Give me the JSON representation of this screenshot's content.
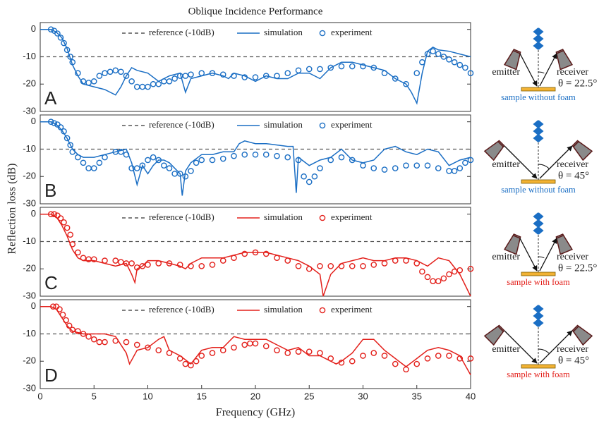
{
  "chart_data": [
    {
      "type": "line",
      "title": "Oblique Incidence Performance",
      "ylabel": "Reflection loss (dB)",
      "label": "A",
      "xlim": [
        0,
        40
      ],
      "ylim": [
        -30,
        2.5
      ],
      "yticks": [
        -30,
        -20,
        -10,
        0
      ],
      "series": [
        {
          "name": "reference (-10dB)",
          "color": "#555555",
          "style": "dashed",
          "x": [
            0,
            40
          ],
          "values": [
            -10,
            -10
          ]
        },
        {
          "name": "simulation",
          "color": "#1a6ec4",
          "style": "line",
          "x": [
            0,
            1,
            1.5,
            2,
            2.5,
            3,
            3.5,
            4,
            5,
            6,
            7,
            7.5,
            8,
            8.5,
            9,
            10,
            11,
            12,
            13,
            13.5,
            14,
            15,
            16,
            17,
            17.5,
            18,
            19,
            20,
            21,
            22,
            23,
            24,
            25,
            26,
            27,
            28,
            29,
            30,
            31,
            32,
            33,
            34,
            34.5,
            35,
            35.5,
            36,
            36.5,
            37,
            38,
            39,
            40
          ],
          "values": [
            0,
            0,
            -1,
            -3,
            -7,
            -13,
            -17,
            -20,
            -21,
            -22,
            -24,
            -21,
            -17,
            -14,
            -15,
            -16,
            -19,
            -17,
            -16,
            -23,
            -18,
            -17,
            -16,
            -17,
            -18,
            -16,
            -17,
            -19,
            -17,
            -18,
            -18,
            -16,
            -16,
            -18,
            -14,
            -12,
            -12,
            -13,
            -14,
            -15,
            -18,
            -20,
            -23,
            -27,
            -16,
            -8,
            -6.5,
            -7.5,
            -8,
            -9,
            -10
          ]
        },
        {
          "name": "experiment",
          "color": "#1a6ec4",
          "style": "markers",
          "x": [
            1,
            1.3,
            1.6,
            1.9,
            2.2,
            2.5,
            2.8,
            3,
            3.5,
            4,
            4.5,
            5,
            5.5,
            6,
            6.5,
            7,
            7.5,
            8,
            8.5,
            9,
            9.5,
            10,
            10.5,
            11,
            11.5,
            12,
            12.5,
            13,
            13.5,
            14,
            15,
            16,
            17,
            18,
            19,
            20,
            21,
            22,
            23,
            24,
            25,
            26,
            27,
            28,
            29,
            30,
            31,
            32,
            33,
            34,
            35,
            35.5,
            36,
            36.5,
            37,
            37.5,
            38,
            38.5,
            39,
            39.5,
            40
          ],
          "values": [
            0,
            -0.5,
            -1.5,
            -3,
            -5,
            -7.5,
            -10,
            -12,
            -16,
            -19,
            -19.5,
            -19,
            -17,
            -16,
            -15.5,
            -15,
            -15.5,
            -17,
            -19,
            -21,
            -21,
            -21,
            -20,
            -20,
            -19,
            -19,
            -18,
            -17,
            -17,
            -16.5,
            -16,
            -16,
            -16.5,
            -17,
            -17.5,
            -17.5,
            -17,
            -17,
            -16,
            -15,
            -14.5,
            -14.5,
            -14,
            -13.5,
            -13.5,
            -13.5,
            -14,
            -16,
            -18,
            -20,
            -16,
            -12,
            -9,
            -8,
            -9,
            -10,
            -11,
            -12,
            -13,
            -14,
            -16
          ]
        }
      ]
    },
    {
      "type": "line",
      "label": "B",
      "xlim": [
        0,
        40
      ],
      "ylim": [
        -30,
        2.5
      ],
      "yticks": [
        -30,
        -20,
        -10,
        0
      ],
      "series": [
        {
          "name": "reference (-10dB)",
          "color": "#555555",
          "style": "dashed",
          "x": [
            0,
            40
          ],
          "values": [
            -10,
            -10
          ]
        },
        {
          "name": "simulation",
          "color": "#1a6ec4",
          "style": "line",
          "x": [
            0,
            1,
            1.5,
            2,
            2.5,
            3,
            3.5,
            4,
            5,
            6,
            7,
            8,
            8.5,
            9,
            9.5,
            10,
            10.5,
            11,
            11.5,
            12,
            13,
            13.2,
            13.5,
            14,
            15,
            16,
            17,
            18,
            18.5,
            19,
            20,
            21,
            22,
            23,
            23.5,
            23.8,
            24,
            25,
            26,
            27,
            28,
            29,
            30,
            31,
            32,
            33,
            34,
            35,
            36,
            37,
            38,
            39,
            40
          ],
          "values": [
            0,
            0,
            -1,
            -3,
            -6,
            -10,
            -12,
            -13,
            -13,
            -12,
            -11,
            -10,
            -15,
            -23,
            -16,
            -19,
            -16,
            -14,
            -14,
            -15,
            -19,
            -27,
            -18,
            -15,
            -12,
            -12,
            -11,
            -11,
            -8,
            -7,
            -8,
            -8,
            -8.5,
            -9,
            -9,
            -26,
            -13,
            -16,
            -14,
            -13,
            -10,
            -14,
            -15,
            -14,
            -10,
            -9,
            -11,
            -12,
            -10,
            -11,
            -16,
            -14,
            -13
          ]
        },
        {
          "name": "experiment",
          "color": "#1a6ec4",
          "style": "markers",
          "x": [
            1,
            1.3,
            1.6,
            1.9,
            2.2,
            2.5,
            2.8,
            3,
            3.5,
            4,
            4.5,
            5,
            5.5,
            6,
            7,
            7.5,
            8,
            8.5,
            9,
            9.5,
            10,
            10.5,
            11,
            11.5,
            12,
            12.5,
            13,
            13.5,
            14,
            14.5,
            15,
            16,
            17,
            18,
            19,
            20,
            21,
            22,
            23,
            24,
            24.5,
            25,
            25.5,
            26,
            27,
            28,
            29,
            30,
            31,
            32,
            33,
            34,
            35,
            36,
            37,
            38,
            38.5,
            39,
            39.5,
            40
          ],
          "values": [
            0,
            -0.5,
            -1,
            -2,
            -3.5,
            -6,
            -8.5,
            -11,
            -13,
            -15,
            -17,
            -17,
            -15,
            -13,
            -11,
            -11,
            -12,
            -17,
            -17,
            -16,
            -14,
            -13,
            -14,
            -16,
            -17,
            -19,
            -19,
            -20,
            -18,
            -15,
            -14,
            -14,
            -13.5,
            -12.5,
            -12,
            -12,
            -12,
            -12.5,
            -13,
            -14,
            -20,
            -22,
            -20,
            -17,
            -14,
            -13,
            -14,
            -16,
            -17,
            -17.5,
            -17,
            -16,
            -16,
            -16,
            -17,
            -18,
            -18,
            -17,
            -15,
            -14
          ]
        }
      ]
    },
    {
      "type": "line",
      "label": "C",
      "xlim": [
        0,
        40
      ],
      "ylim": [
        -30,
        2.5
      ],
      "yticks": [
        -30,
        -20,
        -10,
        0
      ],
      "series": [
        {
          "name": "reference (-10dB)",
          "color": "#555555",
          "style": "dashed",
          "x": [
            0,
            40
          ],
          "values": [
            -10,
            -10
          ]
        },
        {
          "name": "simulation",
          "color": "#e3201b",
          "style": "line",
          "x": [
            0,
            1,
            1.5,
            2,
            2.5,
            3,
            3.5,
            4,
            5,
            6,
            7,
            8,
            8.5,
            8.8,
            9,
            9.5,
            10,
            11,
            12,
            13,
            13.5,
            14,
            15,
            16,
            17,
            18,
            19,
            20,
            21,
            22,
            23,
            24,
            25,
            26,
            26.3,
            27,
            27.5,
            28,
            29,
            30,
            31,
            32,
            33,
            34,
            35,
            36,
            37,
            38,
            39,
            39.5,
            40
          ],
          "values": [
            0,
            0,
            -1,
            -4,
            -8,
            -13,
            -16,
            -17,
            -17,
            -18,
            -19,
            -18,
            -22,
            -25,
            -20,
            -19,
            -17,
            -17,
            -18,
            -19,
            -20,
            -18,
            -16,
            -16,
            -16,
            -15,
            -14,
            -14,
            -14,
            -15,
            -16,
            -17,
            -19,
            -22,
            -30,
            -22,
            -20,
            -18,
            -17,
            -16,
            -17,
            -17,
            -16,
            -16,
            -17,
            -19,
            -16,
            -17,
            -22,
            -26,
            -30
          ]
        },
        {
          "name": "experiment",
          "color": "#e3201b",
          "style": "markers",
          "x": [
            1,
            1.3,
            1.6,
            1.9,
            2.2,
            2.5,
            2.8,
            3,
            3.5,
            4,
            4.5,
            5,
            6,
            7,
            7.5,
            8,
            8.5,
            9,
            9.5,
            10,
            11,
            12,
            13,
            14,
            15,
            16,
            17,
            18,
            19,
            20,
            21,
            22,
            23,
            24,
            25,
            26,
            27,
            28,
            29,
            30,
            31,
            32,
            33,
            34,
            35,
            35.5,
            36,
            36.5,
            37,
            37.5,
            38,
            38.5,
            39,
            40
          ],
          "values": [
            0,
            0,
            -0.5,
            -1.5,
            -3,
            -5,
            -7.5,
            -11,
            -14,
            -16,
            -16.5,
            -16.5,
            -17,
            -17,
            -17.5,
            -18,
            -18,
            -19.5,
            -19,
            -18.5,
            -18,
            -18,
            -18.5,
            -19,
            -19,
            -18.5,
            -17,
            -16,
            -14.5,
            -14,
            -14.5,
            -16,
            -17,
            -19,
            -20,
            -19,
            -19,
            -19,
            -19,
            -19,
            -18.5,
            -18,
            -17,
            -17,
            -18,
            -21,
            -23,
            -24.5,
            -24.5,
            -23.5,
            -22,
            -21,
            -20.5,
            -20
          ]
        }
      ]
    },
    {
      "type": "line",
      "label": "D",
      "xlabel": "Frequency (GHz)",
      "xlim": [
        0,
        40
      ],
      "ylim": [
        -30,
        2.5
      ],
      "yticks": [
        -30,
        -20,
        -10,
        0
      ],
      "xticks": [
        0,
        5,
        10,
        15,
        20,
        25,
        30,
        35,
        40
      ],
      "series": [
        {
          "name": "reference (-10dB)",
          "color": "#555555",
          "style": "dashed",
          "x": [
            0,
            40
          ],
          "values": [
            -10,
            -10
          ]
        },
        {
          "name": "simulation",
          "color": "#e3201b",
          "style": "line",
          "x": [
            0,
            1,
            1.5,
            2,
            2.5,
            3,
            4,
            5,
            6,
            7,
            8,
            8.3,
            9,
            10,
            11,
            11.5,
            12,
            13,
            14,
            15,
            16,
            17,
            18,
            19,
            20,
            21,
            22,
            23,
            24,
            25,
            26,
            27,
            27.5,
            28,
            29,
            30,
            31,
            32,
            33,
            34,
            35,
            36,
            37,
            38,
            39,
            40
          ],
          "values": [
            0,
            0,
            -1,
            -4,
            -7,
            -9,
            -10,
            -10,
            -10,
            -11,
            -17,
            -21,
            -16,
            -15,
            -12,
            -11,
            -16,
            -18,
            -21,
            -16,
            -15,
            -15,
            -11,
            -12,
            -12,
            -12,
            -14,
            -16,
            -15,
            -18,
            -18,
            -20,
            -21,
            -20,
            -17,
            -12,
            -12,
            -16,
            -19,
            -22,
            -19,
            -16,
            -15,
            -16,
            -18,
            -25
          ]
        },
        {
          "name": "experiment",
          "color": "#e3201b",
          "style": "markers",
          "x": [
            1.2,
            1.5,
            1.8,
            2.1,
            2.4,
            2.7,
            3,
            3.5,
            4,
            4.5,
            5,
            5.5,
            6,
            7,
            8,
            9,
            10,
            11,
            12,
            13,
            13.5,
            14,
            14.5,
            15,
            16,
            17,
            18,
            19,
            19.5,
            20,
            21,
            22,
            23,
            24,
            25,
            26,
            27,
            28,
            29,
            30,
            31,
            32,
            33,
            34,
            35,
            36,
            37,
            38,
            39,
            40
          ],
          "values": [
            0,
            0,
            -1,
            -3,
            -5,
            -7,
            -8.5,
            -9,
            -10,
            -11,
            -12,
            -13,
            -13,
            -12.5,
            -13,
            -14,
            -15,
            -16,
            -17,
            -19,
            -21,
            -21.5,
            -20,
            -18,
            -17,
            -16,
            -15,
            -14,
            -13.5,
            -13.5,
            -14.5,
            -16,
            -17,
            -16.5,
            -16.5,
            -17,
            -19,
            -20.5,
            -20,
            -18,
            -17,
            -18,
            -21,
            -23,
            -21,
            -19,
            -18,
            -18,
            -19,
            -19
          ]
        }
      ]
    }
  ],
  "diagrams": [
    {
      "emitter": "emitter",
      "receiver": "receiver",
      "angle": "θ = 22.5°",
      "sample": "sample without foam",
      "color": "#1a6ec4"
    },
    {
      "emitter": "emitter",
      "receiver": "receiver",
      "angle": "θ = 45°",
      "sample": "sample without foam",
      "color": "#1a6ec4"
    },
    {
      "emitter": "emitter",
      "receiver": "receiver",
      "angle": "θ = 22.5°",
      "sample": "sample with foam",
      "color": "#e3201b"
    },
    {
      "emitter": "emitter",
      "receiver": "receiver",
      "angle": "θ = 45°",
      "sample": "sample with foam",
      "color": "#e3201b"
    }
  ]
}
